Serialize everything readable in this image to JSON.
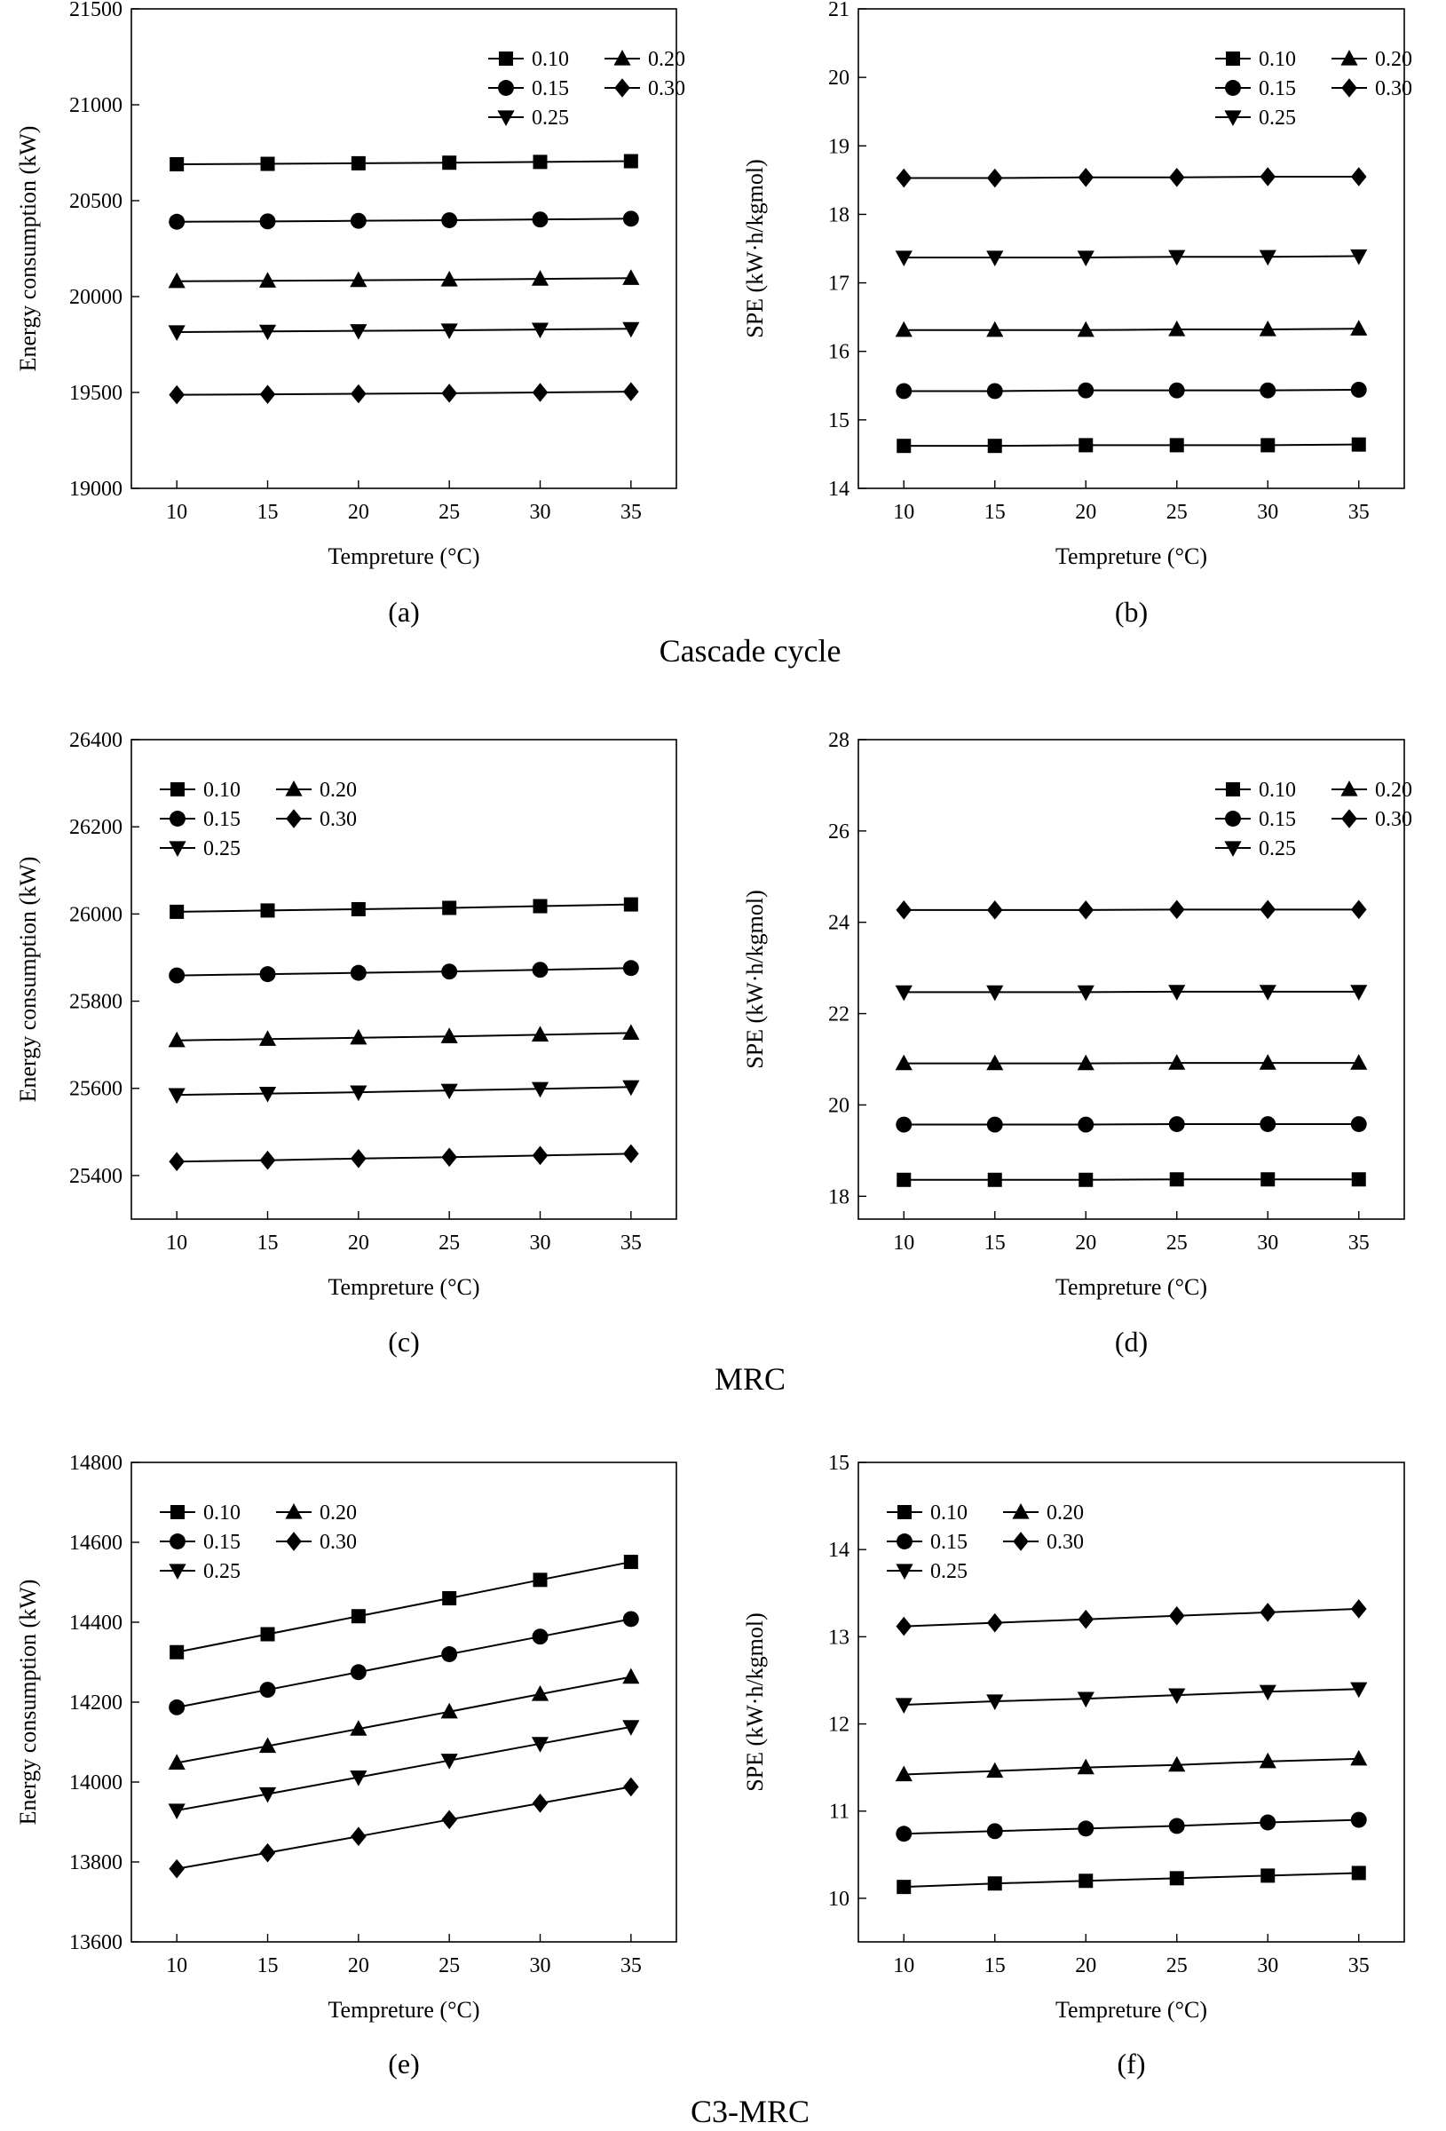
{
  "section_titles": [
    "Cascade cycle",
    "MRC",
    "C3-MRC"
  ],
  "chart_data": [
    {
      "id": "a",
      "panel_label": "(a)",
      "type": "line",
      "xlabel": "Tempreture (°C)",
      "ylabel": "Energy consumption (kW)",
      "x": [
        10,
        15,
        20,
        25,
        30,
        35
      ],
      "xlim": [
        7.5,
        37.5
      ],
      "xticks": [
        10,
        15,
        20,
        25,
        30,
        35
      ],
      "ylim": [
        19000,
        21500
      ],
      "yticks": [
        19000,
        19500,
        20000,
        20500,
        21000,
        21500
      ],
      "legend_position": "top-right",
      "series": [
        {
          "name": "0.10",
          "marker": "square",
          "values": [
            20690,
            20692,
            20695,
            20698,
            20702,
            20706
          ]
        },
        {
          "name": "0.15",
          "marker": "circle",
          "values": [
            20390,
            20392,
            20395,
            20398,
            20402,
            20406
          ]
        },
        {
          "name": "0.20",
          "marker": "triangle",
          "values": [
            20080,
            20082,
            20085,
            20088,
            20092,
            20096
          ]
        },
        {
          "name": "0.25",
          "marker": "tri-down",
          "values": [
            19815,
            19818,
            19821,
            19824,
            19828,
            19832
          ]
        },
        {
          "name": "0.30",
          "marker": "diamond",
          "values": [
            19488,
            19490,
            19493,
            19496,
            19500,
            19504
          ]
        }
      ]
    },
    {
      "id": "b",
      "panel_label": "(b)",
      "type": "line",
      "xlabel": "Tempreture (°C)",
      "ylabel": "SPE (kW·h/kgmol)",
      "x": [
        10,
        15,
        20,
        25,
        30,
        35
      ],
      "xlim": [
        7.5,
        37.5
      ],
      "xticks": [
        10,
        15,
        20,
        25,
        30,
        35
      ],
      "ylim": [
        14,
        21
      ],
      "yticks": [
        14,
        15,
        16,
        17,
        18,
        19,
        20,
        21
      ],
      "legend_position": "top-right",
      "series": [
        {
          "name": "0.10",
          "marker": "square",
          "values": [
            14.62,
            14.62,
            14.63,
            14.63,
            14.63,
            14.64
          ]
        },
        {
          "name": "0.15",
          "marker": "circle",
          "values": [
            15.42,
            15.42,
            15.43,
            15.43,
            15.43,
            15.44
          ]
        },
        {
          "name": "0.20",
          "marker": "triangle",
          "values": [
            16.31,
            16.31,
            16.31,
            16.32,
            16.32,
            16.33
          ]
        },
        {
          "name": "0.25",
          "marker": "tri-down",
          "values": [
            17.37,
            17.37,
            17.37,
            17.38,
            17.38,
            17.39
          ]
        },
        {
          "name": "0.30",
          "marker": "diamond",
          "values": [
            18.53,
            18.53,
            18.54,
            18.54,
            18.55,
            18.55
          ]
        }
      ]
    },
    {
      "id": "c",
      "panel_label": "(c)",
      "type": "line",
      "xlabel": "Tempreture (°C)",
      "ylabel": "Energy consumption (kW)",
      "x": [
        10,
        15,
        20,
        25,
        30,
        35
      ],
      "xlim": [
        7.5,
        37.5
      ],
      "xticks": [
        10,
        15,
        20,
        25,
        30,
        35
      ],
      "ylim": [
        25300,
        26400
      ],
      "yticks": [
        25400,
        25600,
        25800,
        26000,
        26200,
        26400
      ],
      "legend_position": "top-left",
      "series": [
        {
          "name": "0.10",
          "marker": "square",
          "values": [
            26005,
            26008,
            26011,
            26014,
            26018,
            26022
          ]
        },
        {
          "name": "0.15",
          "marker": "circle",
          "values": [
            25859,
            25862,
            25865,
            25868,
            25872,
            25876
          ]
        },
        {
          "name": "0.20",
          "marker": "triangle",
          "values": [
            25710,
            25713,
            25716,
            25719,
            25723,
            25727
          ]
        },
        {
          "name": "0.25",
          "marker": "tri-down",
          "values": [
            25585,
            25588,
            25591,
            25595,
            25599,
            25603
          ]
        },
        {
          "name": "0.30",
          "marker": "diamond",
          "values": [
            25432,
            25435,
            25439,
            25442,
            25446,
            25450
          ]
        }
      ]
    },
    {
      "id": "d",
      "panel_label": "(d)",
      "type": "line",
      "xlabel": "Tempreture (°C)",
      "ylabel": "SPE (kW·h/kgmol)",
      "x": [
        10,
        15,
        20,
        25,
        30,
        35
      ],
      "xlim": [
        7.5,
        37.5
      ],
      "xticks": [
        10,
        15,
        20,
        25,
        30,
        35
      ],
      "ylim": [
        17.5,
        28
      ],
      "yticks": [
        18,
        20,
        22,
        24,
        26,
        28
      ],
      "legend_position": "top-right",
      "series": [
        {
          "name": "0.10",
          "marker": "square",
          "values": [
            18.36,
            18.36,
            18.36,
            18.37,
            18.37,
            18.37
          ]
        },
        {
          "name": "0.15",
          "marker": "circle",
          "values": [
            19.57,
            19.57,
            19.57,
            19.58,
            19.58,
            19.58
          ]
        },
        {
          "name": "0.20",
          "marker": "triangle",
          "values": [
            20.91,
            20.91,
            20.91,
            20.92,
            20.92,
            20.92
          ]
        },
        {
          "name": "0.25",
          "marker": "tri-down",
          "values": [
            22.47,
            22.47,
            22.47,
            22.48,
            22.48,
            22.48
          ]
        },
        {
          "name": "0.30",
          "marker": "diamond",
          "values": [
            24.27,
            24.27,
            24.27,
            24.28,
            24.28,
            24.28
          ]
        }
      ]
    },
    {
      "id": "e",
      "panel_label": "(e)",
      "type": "line",
      "xlabel": "Tempreture (°C)",
      "ylabel": "Energy consumption (kW)",
      "x": [
        10,
        15,
        20,
        25,
        30,
        35
      ],
      "xlim": [
        7.5,
        37.5
      ],
      "xticks": [
        10,
        15,
        20,
        25,
        30,
        35
      ],
      "ylim": [
        13600,
        14800
      ],
      "yticks": [
        13600,
        13800,
        14000,
        14200,
        14400,
        14600,
        14800
      ],
      "legend_position": "top-left",
      "series": [
        {
          "name": "0.10",
          "marker": "square",
          "values": [
            14325,
            14370,
            14415,
            14460,
            14506,
            14551
          ]
        },
        {
          "name": "0.15",
          "marker": "circle",
          "values": [
            14187,
            14231,
            14275,
            14320,
            14364,
            14408
          ]
        },
        {
          "name": "0.20",
          "marker": "triangle",
          "values": [
            14048,
            14090,
            14133,
            14176,
            14220,
            14263
          ]
        },
        {
          "name": "0.25",
          "marker": "tri-down",
          "values": [
            13929,
            13970,
            14012,
            14054,
            14096,
            14138
          ]
        },
        {
          "name": "0.30",
          "marker": "diamond",
          "values": [
            13783,
            13823,
            13864,
            13906,
            13947,
            13988
          ]
        }
      ]
    },
    {
      "id": "f",
      "panel_label": "(f)",
      "type": "line",
      "xlabel": "Tempreture (°C)",
      "ylabel": "SPE (kW·h/kgmol)",
      "x": [
        10,
        15,
        20,
        25,
        30,
        35
      ],
      "xlim": [
        7.5,
        37.5
      ],
      "xticks": [
        10,
        15,
        20,
        25,
        30,
        35
      ],
      "ylim": [
        9.5,
        15
      ],
      "yticks": [
        10,
        11,
        12,
        13,
        14,
        15
      ],
      "legend_position": "top-left",
      "series": [
        {
          "name": "0.10",
          "marker": "square",
          "values": [
            10.13,
            10.17,
            10.2,
            10.23,
            10.26,
            10.29
          ]
        },
        {
          "name": "0.15",
          "marker": "circle",
          "values": [
            10.74,
            10.77,
            10.8,
            10.83,
            10.87,
            10.9
          ]
        },
        {
          "name": "0.20",
          "marker": "triangle",
          "values": [
            11.42,
            11.46,
            11.5,
            11.53,
            11.57,
            11.6
          ]
        },
        {
          "name": "0.25",
          "marker": "tri-down",
          "values": [
            12.22,
            12.26,
            12.29,
            12.33,
            12.37,
            12.4
          ]
        },
        {
          "name": "0.30",
          "marker": "diamond",
          "values": [
            13.12,
            13.16,
            13.2,
            13.24,
            13.28,
            13.32
          ]
        }
      ]
    }
  ]
}
